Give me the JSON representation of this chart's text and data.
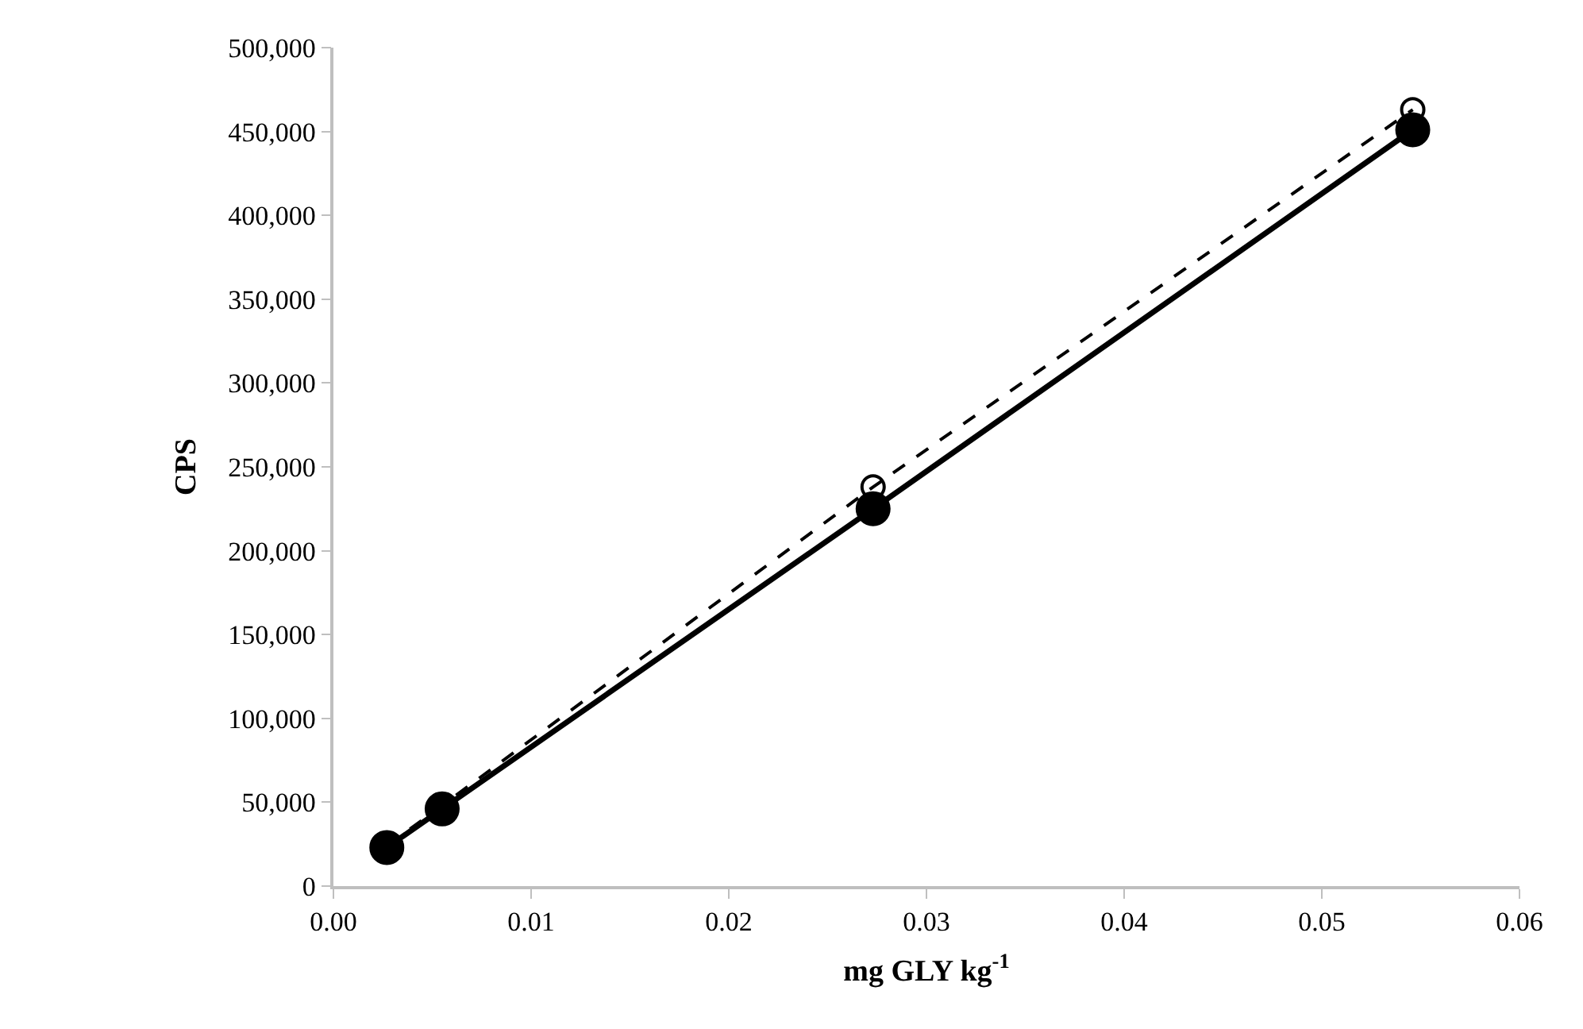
{
  "chart_data": {
    "type": "line",
    "xlabel": "mg GLY kg$^{-1}$",
    "ylabel": "CPS",
    "x": [
      0.0027,
      0.0055,
      0.0273,
      0.0546
    ],
    "series": [
      {
        "color": "#000000",
        "values": [
          24000,
          48000,
          238000,
          463000
        ],
        "marker": "circle-open",
        "line_style": "dashed"
      },
      {
        "color": "#000000",
        "values": [
          23000,
          46000,
          225000,
          451000
        ],
        "marker": "circle",
        "line_style": "solid"
      }
    ],
    "xlim": [
      0,
      0.06
    ],
    "xticks": [
      {
        "value": 0,
        "label": "0.00"
      },
      {
        "value": 0.01,
        "label": "0.01"
      },
      {
        "value": 0.02,
        "label": "0.02"
      },
      {
        "value": 0.03,
        "label": "0.03"
      },
      {
        "value": 0.04,
        "label": "0.04"
      },
      {
        "value": 0.05,
        "label": "0.05"
      },
      {
        "value": 0.06,
        "label": "0.06"
      }
    ],
    "ylim": [
      0,
      500000
    ],
    "yticks": [
      {
        "value": 0,
        "label": "0"
      },
      {
        "value": 50000,
        "label": "50,000"
      },
      {
        "value": 100000,
        "label": "100,000"
      },
      {
        "value": 150000,
        "label": "150,000"
      },
      {
        "value": 200000,
        "label": "200,000"
      },
      {
        "value": 250000,
        "label": "250,000"
      },
      {
        "value": 300000,
        "label": "300,000"
      },
      {
        "value": 350000,
        "label": "350,000"
      },
      {
        "value": 400000,
        "label": "400,000"
      },
      {
        "value": 450000,
        "label": "450,000"
      },
      {
        "value": 500000,
        "label": "500,000"
      }
    ]
  }
}
